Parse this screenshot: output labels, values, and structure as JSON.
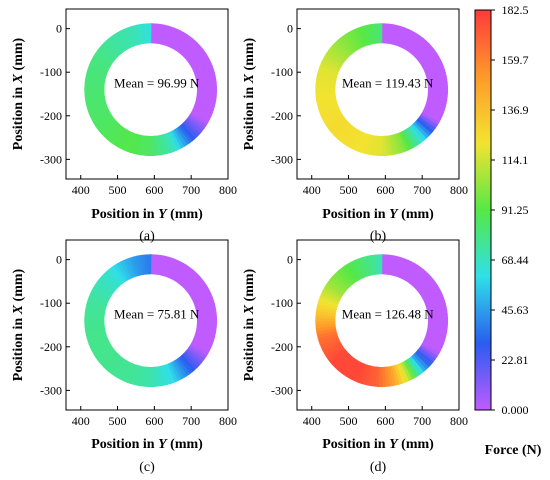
{
  "chart_data": [
    {
      "type": "heatmap",
      "panel_label": "(a)",
      "annotation": "Mean = 96.99 N",
      "xlabel_prefix": "Position in ",
      "xlabel_var": "Y",
      "xlabel_suffix": " (mm)",
      "ylabel_prefix": "Position in ",
      "ylabel_var": "X",
      "ylabel_suffix": " (mm)",
      "xticks": [
        "400",
        "500",
        "600",
        "700",
        "800"
      ],
      "yticks": [
        "0",
        "-100",
        "-200",
        "-300"
      ],
      "xlim": [
        360,
        800
      ],
      "ylim": [
        -345,
        45
      ],
      "ring": {
        "center_y": 590,
        "center_x": -140,
        "radius": 153
      },
      "force_profile": [
        [
          0,
          0
        ],
        [
          120,
          0
        ],
        [
          140,
          30
        ],
        [
          160,
          70
        ],
        [
          180,
          85
        ],
        [
          200,
          90
        ],
        [
          220,
          88
        ],
        [
          240,
          85
        ],
        [
          270,
          83
        ],
        [
          300,
          80
        ],
        [
          320,
          75
        ],
        [
          345,
          70
        ],
        [
          365,
          60
        ],
        [
          375,
          40
        ],
        [
          380,
          0
        ],
        [
          360,
          0
        ]
      ]
    },
    {
      "type": "heatmap",
      "panel_label": "(b)",
      "annotation": "Mean = 119.43 N",
      "xlabel_prefix": "Position in ",
      "xlabel_var": "Y",
      "xlabel_suffix": " (mm)",
      "ylabel_prefix": "Position in ",
      "ylabel_var": "X",
      "ylabel_suffix": " (mm)",
      "xticks": [
        "400",
        "500",
        "600",
        "700",
        "800"
      ],
      "yticks": [
        "0",
        "-100",
        "-200",
        "-300"
      ],
      "xlim": [
        360,
        800
      ],
      "ylim": [
        -345,
        45
      ],
      "ring": {
        "center_y": 590,
        "center_x": -140,
        "radius": 153
      },
      "force_profile": [
        [
          0,
          0
        ],
        [
          120,
          0
        ],
        [
          140,
          60
        ],
        [
          160,
          100
        ],
        [
          180,
          118
        ],
        [
          200,
          122
        ],
        [
          230,
          125
        ],
        [
          260,
          122
        ],
        [
          290,
          118
        ],
        [
          315,
          105
        ],
        [
          335,
          95
        ],
        [
          355,
          85
        ],
        [
          370,
          70
        ],
        [
          378,
          40
        ],
        [
          380,
          0
        ],
        [
          360,
          0
        ]
      ]
    },
    {
      "type": "heatmap",
      "panel_label": "(c)",
      "annotation": "Mean = 75.81 N",
      "xlabel_prefix": "Position in ",
      "xlabel_var": "Y",
      "xlabel_suffix": " (mm)",
      "ylabel_prefix": "Position in ",
      "ylabel_var": "X",
      "ylabel_suffix": " (mm)",
      "xticks": [
        "400",
        "500",
        "600",
        "700",
        "800"
      ],
      "yticks": [
        "0",
        "-100",
        "-200",
        "-300"
      ],
      "xlim": [
        360,
        800
      ],
      "ylim": [
        -345,
        45
      ],
      "ring": {
        "center_y": 590,
        "center_x": -140,
        "radius": 153
      },
      "force_profile": [
        [
          0,
          0
        ],
        [
          120,
          0
        ],
        [
          140,
          30
        ],
        [
          160,
          60
        ],
        [
          180,
          72
        ],
        [
          200,
          76
        ],
        [
          230,
          78
        ],
        [
          260,
          78
        ],
        [
          290,
          75
        ],
        [
          320,
          65
        ],
        [
          345,
          45
        ],
        [
          365,
          35
        ],
        [
          375,
          20
        ],
        [
          380,
          0
        ],
        [
          360,
          0
        ]
      ]
    },
    {
      "type": "heatmap",
      "panel_label": "(d)",
      "annotation": "Mean = 126.48 N",
      "xlabel_prefix": "Position in ",
      "xlabel_var": "Y",
      "xlabel_suffix": " (mm)",
      "ylabel_prefix": "Position in ",
      "ylabel_var": "X",
      "ylabel_suffix": " (mm)",
      "xticks": [
        "400",
        "500",
        "600",
        "700",
        "800"
      ],
      "yticks": [
        "0",
        "-100",
        "-200",
        "-300"
      ],
      "xlim": [
        360,
        800
      ],
      "ylim": [
        -345,
        45
      ],
      "ring": {
        "center_y": 590,
        "center_x": -140,
        "radius": 153
      },
      "force_profile": [
        [
          0,
          0
        ],
        [
          120,
          0
        ],
        [
          140,
          50
        ],
        [
          155,
          110
        ],
        [
          170,
          150
        ],
        [
          185,
          170
        ],
        [
          205,
          178
        ],
        [
          230,
          178
        ],
        [
          255,
          165
        ],
        [
          280,
          130
        ],
        [
          305,
          105
        ],
        [
          330,
          90
        ],
        [
          355,
          75
        ],
        [
          372,
          55
        ],
        [
          380,
          0
        ],
        [
          360,
          0
        ]
      ]
    }
  ],
  "colorbar": {
    "label": "Force (N)",
    "min": 0.0,
    "max": 182.5,
    "ticks": [
      "182.5",
      "159.7",
      "136.9",
      "114.1",
      "91.25",
      "68.44",
      "45.63",
      "22.81",
      "0.000"
    ],
    "stops": [
      "#ff3a3a",
      "#ff9a2a",
      "#f3e330",
      "#55e845",
      "#2fe0e8",
      "#2a5cf0",
      "#c05cff"
    ]
  },
  "colors": {
    "ring_base": "#a64cf5"
  }
}
